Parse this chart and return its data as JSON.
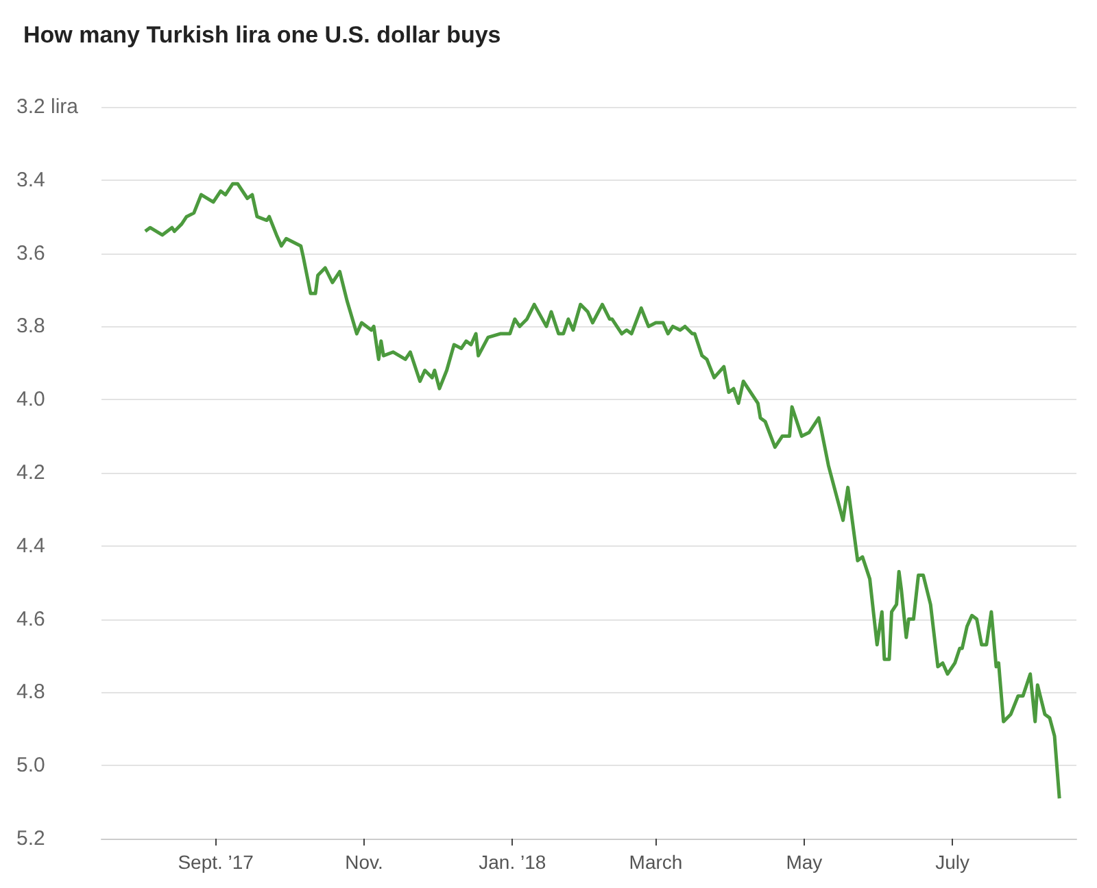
{
  "chart_data": {
    "type": "line",
    "title": "How many Turkish lira one U.S. dollar buys",
    "x": [
      "2017-08-03",
      "2017-08-05",
      "2017-08-10",
      "2017-08-14",
      "2017-08-15",
      "2017-08-18",
      "2017-08-20",
      "2017-08-23",
      "2017-08-26",
      "2017-08-31",
      "2017-09-03",
      "2017-09-05",
      "2017-09-08",
      "2017-09-10",
      "2017-09-14",
      "2017-09-16",
      "2017-09-18",
      "2017-09-22",
      "2017-09-23",
      "2017-09-26",
      "2017-09-28",
      "2017-09-30",
      "2017-10-06",
      "2017-10-07",
      "2017-10-10",
      "2017-10-12",
      "2017-10-13",
      "2017-10-16",
      "2017-10-19",
      "2017-10-22",
      "2017-10-25",
      "2017-10-29",
      "2017-10-31",
      "2017-11-04",
      "2017-11-05",
      "2017-11-07",
      "2017-11-08",
      "2017-11-09",
      "2017-11-13",
      "2017-11-18",
      "2017-11-20",
      "2017-11-24",
      "2017-11-26",
      "2017-11-29",
      "2017-11-30",
      "2017-12-02",
      "2017-12-05",
      "2017-12-08",
      "2017-12-11",
      "2017-12-13",
      "2017-12-15",
      "2017-12-17",
      "2017-12-18",
      "2017-12-22",
      "2017-12-27",
      "2017-12-31",
      "2018-01-02",
      "2018-01-04",
      "2018-01-07",
      "2018-01-10",
      "2018-01-15",
      "2018-01-17",
      "2018-01-20",
      "2018-01-22",
      "2018-01-24",
      "2018-01-26",
      "2018-01-29",
      "2018-02-01",
      "2018-02-03",
      "2018-02-07",
      "2018-02-10",
      "2018-02-11",
      "2018-02-15",
      "2018-02-17",
      "2018-02-19",
      "2018-02-23",
      "2018-02-26",
      "2018-03-01",
      "2018-03-04",
      "2018-03-06",
      "2018-03-08",
      "2018-03-11",
      "2018-03-13",
      "2018-03-16",
      "2018-03-17",
      "2018-03-20",
      "2018-03-22",
      "2018-03-25",
      "2018-03-29",
      "2018-03-31",
      "2018-04-02",
      "2018-04-04",
      "2018-04-06",
      "2018-04-12",
      "2018-04-13",
      "2018-04-15",
      "2018-04-19",
      "2018-04-22",
      "2018-04-25",
      "2018-04-26",
      "2018-04-30",
      "2018-05-03",
      "2018-05-07",
      "2018-05-08",
      "2018-05-11",
      "2018-05-13",
      "2018-05-17",
      "2018-05-19",
      "2018-05-23",
      "2018-05-25",
      "2018-05-28",
      "2018-05-30",
      "2018-05-31",
      "2018-06-02",
      "2018-06-03",
      "2018-06-05",
      "2018-06-06",
      "2018-06-08",
      "2018-06-09",
      "2018-06-10",
      "2018-06-12",
      "2018-06-13",
      "2018-06-15",
      "2018-06-17",
      "2018-06-19",
      "2018-06-22",
      "2018-06-25",
      "2018-06-27",
      "2018-06-29",
      "2018-07-02",
      "2018-07-04",
      "2018-07-05",
      "2018-07-07",
      "2018-07-09",
      "2018-07-11",
      "2018-07-13",
      "2018-07-15",
      "2018-07-17",
      "2018-07-19",
      "2018-07-20",
      "2018-07-22",
      "2018-07-25",
      "2018-07-28",
      "2018-07-30",
      "2018-08-02",
      "2018-08-04",
      "2018-08-05",
      "2018-08-08",
      "2018-08-10",
      "2018-08-12",
      "2018-08-14"
    ],
    "series": [
      {
        "color": "#4c9a3e",
        "values": [
          3.54,
          3.53,
          3.55,
          3.53,
          3.54,
          3.52,
          3.5,
          3.49,
          3.44,
          3.46,
          3.43,
          3.44,
          3.41,
          3.41,
          3.45,
          3.44,
          3.5,
          3.51,
          3.5,
          3.55,
          3.58,
          3.56,
          3.58,
          3.61,
          3.71,
          3.71,
          3.66,
          3.64,
          3.68,
          3.65,
          3.73,
          3.82,
          3.79,
          3.81,
          3.8,
          3.89,
          3.84,
          3.88,
          3.87,
          3.89,
          3.87,
          3.95,
          3.92,
          3.94,
          3.92,
          3.97,
          3.92,
          3.85,
          3.86,
          3.84,
          3.85,
          3.82,
          3.88,
          3.83,
          3.82,
          3.82,
          3.78,
          3.8,
          3.78,
          3.74,
          3.8,
          3.76,
          3.82,
          3.82,
          3.78,
          3.81,
          3.74,
          3.76,
          3.79,
          3.74,
          3.78,
          3.78,
          3.82,
          3.81,
          3.82,
          3.75,
          3.8,
          3.79,
          3.79,
          3.82,
          3.8,
          3.81,
          3.8,
          3.82,
          3.82,
          3.88,
          3.89,
          3.94,
          3.91,
          3.98,
          3.97,
          4.01,
          3.95,
          4.01,
          4.05,
          4.06,
          4.13,
          4.1,
          4.1,
          4.02,
          4.1,
          4.09,
          4.05,
          4.08,
          4.18,
          4.23,
          4.33,
          4.24,
          4.44,
          4.43,
          4.49,
          4.61,
          4.67,
          4.58,
          4.71,
          4.71,
          4.58,
          4.56,
          4.47,
          4.52,
          4.65,
          4.6,
          4.6,
          4.48,
          4.48,
          4.56,
          4.73,
          4.72,
          4.75,
          4.72,
          4.68,
          4.68,
          4.62,
          4.59,
          4.6,
          4.67,
          4.67,
          4.58,
          4.73,
          4.72,
          4.88,
          4.86,
          4.81,
          4.81,
          4.75,
          4.88,
          4.78,
          4.86,
          4.87,
          4.92,
          5.09
        ]
      }
    ],
    "xlim": [
      "2017-07-16",
      "2018-08-21"
    ],
    "xticks": [
      {
        "value": "2017-09-01",
        "label": "Sept. ’17"
      },
      {
        "value": "2017-11-01",
        "label": "Nov."
      },
      {
        "value": "2018-01-01",
        "label": "Jan. ’18"
      },
      {
        "value": "2018-03-01",
        "label": "March"
      },
      {
        "value": "2018-05-01",
        "label": "May"
      },
      {
        "value": "2018-07-01",
        "label": "July"
      }
    ],
    "ylim": [
      5.2,
      3.2
    ],
    "yticks": [
      {
        "value": 3.2,
        "label": "3.2 lira"
      },
      3.4,
      3.6,
      3.8,
      {
        "value": 4.0,
        "label": "4.0"
      },
      4.2,
      4.4,
      4.6,
      4.8,
      {
        "value": 5.0,
        "label": "5.0"
      },
      5.2
    ],
    "grid": "y",
    "line_style": "solid"
  }
}
